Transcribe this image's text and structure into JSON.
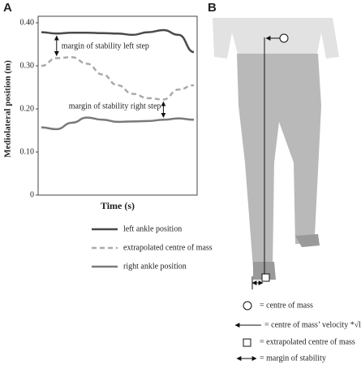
{
  "panel_labels": [
    "A",
    "B"
  ],
  "chart_data": {
    "type": "line",
    "ylabel": "Mediolateral position (m)",
    "xlabel": "Time (s)",
    "categories": [
      null,
      null,
      null,
      null,
      null,
      null,
      null,
      null,
      null,
      null,
      null
    ],
    "series": [
      {
        "name": "left ankle position",
        "color": "#4a4a4a",
        "dash": false,
        "values": [
          0.378,
          0.375,
          0.377,
          0.377,
          0.376,
          0.375,
          0.372,
          0.378,
          0.383,
          0.372,
          0.332
        ]
      },
      {
        "name": "extrapolated centre of mass",
        "color": "#aaaaaa",
        "dash": true,
        "values": [
          0.3,
          0.318,
          0.32,
          0.305,
          0.28,
          0.255,
          0.235,
          0.225,
          0.222,
          0.245,
          0.255
        ]
      },
      {
        "name": "right ankle position",
        "color": "#7a7a7a",
        "dash": false,
        "values": [
          0.157,
          0.153,
          0.168,
          0.18,
          0.175,
          0.17,
          0.171,
          0.172,
          0.175,
          0.178,
          0.175
        ]
      }
    ],
    "ylim": [
      0,
      0.4
    ],
    "yticks": [
      0,
      {
        "value": 0.1,
        "label": "0.10"
      },
      {
        "value": 0.2,
        "label": "0.20"
      },
      {
        "value": 0.3,
        "label": "0.30"
      },
      {
        "value": 0.4,
        "label": "0.40"
      }
    ],
    "annotations": [
      "margin of stability left step",
      "margin of stability right step"
    ]
  },
  "diagram_legend": [
    "= centre of mass",
    "= centre of mass’ velocity *√l/g",
    "= extrapolated centre of mass",
    "= margin of stability"
  ]
}
